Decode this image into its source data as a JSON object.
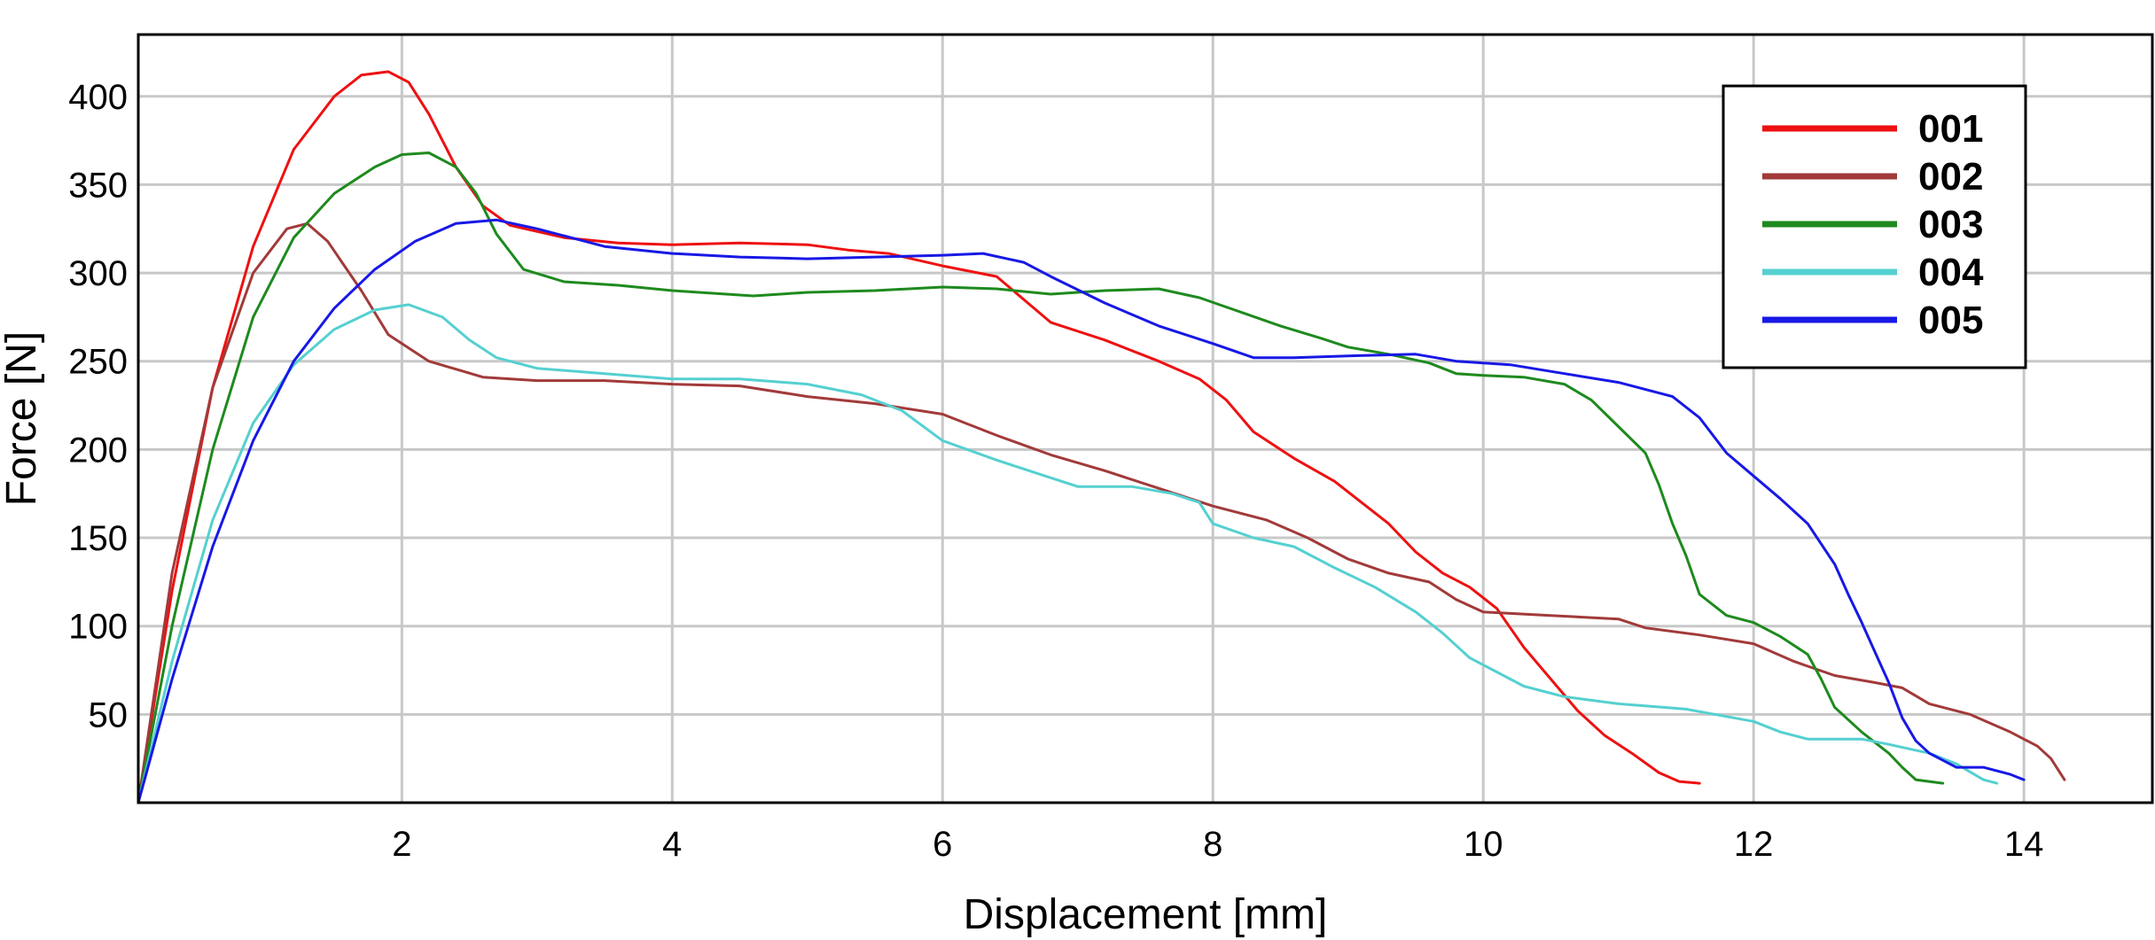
{
  "chart_data": {
    "type": "line",
    "title": "",
    "xlabel": "Displacement [mm]",
    "ylabel": "Force [N]",
    "xlim": [
      0.05,
      14.95
    ],
    "ylim": [
      0,
      435
    ],
    "xticks": [
      2,
      4,
      6,
      8,
      10,
      12,
      14
    ],
    "yticks": [
      50,
      100,
      150,
      200,
      250,
      300,
      350,
      400
    ],
    "grid": true,
    "legend_position": "top-right",
    "series": [
      {
        "name": "001",
        "color": "#ee1111",
        "points": [
          [
            0.05,
            0
          ],
          [
            0.3,
            120
          ],
          [
            0.6,
            235
          ],
          [
            0.9,
            315
          ],
          [
            1.2,
            370
          ],
          [
            1.5,
            400
          ],
          [
            1.7,
            412
          ],
          [
            1.9,
            414
          ],
          [
            2.05,
            408
          ],
          [
            2.2,
            390
          ],
          [
            2.4,
            360
          ],
          [
            2.6,
            338
          ],
          [
            2.8,
            327
          ],
          [
            3.2,
            320
          ],
          [
            3.6,
            317
          ],
          [
            4.0,
            316
          ],
          [
            4.5,
            317
          ],
          [
            5.0,
            316
          ],
          [
            5.3,
            313
          ],
          [
            5.6,
            311
          ],
          [
            6.0,
            304
          ],
          [
            6.4,
            298
          ],
          [
            6.6,
            285
          ],
          [
            6.8,
            272
          ],
          [
            7.2,
            262
          ],
          [
            7.6,
            250
          ],
          [
            7.9,
            240
          ],
          [
            8.1,
            228
          ],
          [
            8.3,
            210
          ],
          [
            8.6,
            195
          ],
          [
            8.9,
            182
          ],
          [
            9.1,
            170
          ],
          [
            9.3,
            158
          ],
          [
            9.5,
            142
          ],
          [
            9.7,
            130
          ],
          [
            9.9,
            122
          ],
          [
            10.1,
            110
          ],
          [
            10.3,
            88
          ],
          [
            10.5,
            70
          ],
          [
            10.7,
            52
          ],
          [
            10.9,
            38
          ],
          [
            11.1,
            28
          ],
          [
            11.3,
            17
          ],
          [
            11.45,
            12
          ],
          [
            11.6,
            11
          ]
        ]
      },
      {
        "name": "002",
        "color": "#a23a3a",
        "points": [
          [
            0.05,
            0
          ],
          [
            0.3,
            130
          ],
          [
            0.6,
            235
          ],
          [
            0.9,
            300
          ],
          [
            1.15,
            325
          ],
          [
            1.3,
            328
          ],
          [
            1.45,
            318
          ],
          [
            1.7,
            290
          ],
          [
            1.9,
            265
          ],
          [
            2.2,
            250
          ],
          [
            2.6,
            241
          ],
          [
            3.0,
            239
          ],
          [
            3.5,
            239
          ],
          [
            4.0,
            237
          ],
          [
            4.5,
            236
          ],
          [
            5.0,
            230
          ],
          [
            5.5,
            226
          ],
          [
            6.0,
            220
          ],
          [
            6.4,
            208
          ],
          [
            6.8,
            197
          ],
          [
            7.2,
            188
          ],
          [
            7.6,
            178
          ],
          [
            8.0,
            168
          ],
          [
            8.4,
            160
          ],
          [
            8.7,
            150
          ],
          [
            9.0,
            138
          ],
          [
            9.3,
            130
          ],
          [
            9.6,
            125
          ],
          [
            9.8,
            115
          ],
          [
            10.0,
            108
          ],
          [
            10.5,
            106
          ],
          [
            11.0,
            104
          ],
          [
            11.2,
            99
          ],
          [
            11.6,
            95
          ],
          [
            12.0,
            90
          ],
          [
            12.3,
            80
          ],
          [
            12.6,
            72
          ],
          [
            12.9,
            68
          ],
          [
            13.1,
            65
          ],
          [
            13.3,
            56
          ],
          [
            13.6,
            50
          ],
          [
            13.9,
            40
          ],
          [
            14.1,
            32
          ],
          [
            14.2,
            25
          ],
          [
            14.3,
            13
          ]
        ]
      },
      {
        "name": "003",
        "color": "#1e8a1e",
        "points": [
          [
            0.05,
            0
          ],
          [
            0.3,
            100
          ],
          [
            0.6,
            200
          ],
          [
            0.9,
            275
          ],
          [
            1.2,
            320
          ],
          [
            1.5,
            345
          ],
          [
            1.8,
            360
          ],
          [
            2.0,
            367
          ],
          [
            2.2,
            368
          ],
          [
            2.4,
            360
          ],
          [
            2.55,
            345
          ],
          [
            2.7,
            322
          ],
          [
            2.9,
            302
          ],
          [
            3.2,
            295
          ],
          [
            3.6,
            293
          ],
          [
            4.0,
            290
          ],
          [
            4.6,
            287
          ],
          [
            5.0,
            289
          ],
          [
            5.5,
            290
          ],
          [
            6.0,
            292
          ],
          [
            6.4,
            291
          ],
          [
            6.8,
            288
          ],
          [
            7.2,
            290
          ],
          [
            7.6,
            291
          ],
          [
            7.9,
            286
          ],
          [
            8.2,
            278
          ],
          [
            8.5,
            270
          ],
          [
            8.8,
            263
          ],
          [
            9.0,
            258
          ],
          [
            9.3,
            254
          ],
          [
            9.6,
            249
          ],
          [
            9.8,
            243
          ],
          [
            10.0,
            242
          ],
          [
            10.3,
            241
          ],
          [
            10.6,
            237
          ],
          [
            10.8,
            228
          ],
          [
            11.0,
            213
          ],
          [
            11.2,
            198
          ],
          [
            11.3,
            180
          ],
          [
            11.4,
            158
          ],
          [
            11.5,
            140
          ],
          [
            11.6,
            118
          ],
          [
            11.8,
            106
          ],
          [
            12.0,
            102
          ],
          [
            12.2,
            94
          ],
          [
            12.4,
            84
          ],
          [
            12.5,
            70
          ],
          [
            12.6,
            54
          ],
          [
            12.8,
            40
          ],
          [
            13.0,
            28
          ],
          [
            13.1,
            20
          ],
          [
            13.2,
            13
          ],
          [
            13.4,
            11
          ]
        ]
      },
      {
        "name": "004",
        "color": "#55d0d0",
        "points": [
          [
            0.05,
            0
          ],
          [
            0.3,
            80
          ],
          [
            0.6,
            160
          ],
          [
            0.9,
            215
          ],
          [
            1.2,
            248
          ],
          [
            1.5,
            268
          ],
          [
            1.8,
            279
          ],
          [
            2.05,
            282
          ],
          [
            2.3,
            275
          ],
          [
            2.5,
            262
          ],
          [
            2.7,
            252
          ],
          [
            3.0,
            246
          ],
          [
            3.5,
            243
          ],
          [
            4.0,
            240
          ],
          [
            4.5,
            240
          ],
          [
            5.0,
            237
          ],
          [
            5.4,
            231
          ],
          [
            5.7,
            222
          ],
          [
            6.0,
            205
          ],
          [
            6.4,
            194
          ],
          [
            6.8,
            184
          ],
          [
            7.0,
            179
          ],
          [
            7.4,
            179
          ],
          [
            7.7,
            175
          ],
          [
            7.9,
            170
          ],
          [
            8.0,
            158
          ],
          [
            8.3,
            150
          ],
          [
            8.6,
            145
          ],
          [
            8.9,
            133
          ],
          [
            9.2,
            122
          ],
          [
            9.5,
            108
          ],
          [
            9.7,
            96
          ],
          [
            9.9,
            82
          ],
          [
            10.1,
            74
          ],
          [
            10.3,
            66
          ],
          [
            10.6,
            60
          ],
          [
            11.0,
            56
          ],
          [
            11.5,
            53
          ],
          [
            12.0,
            46
          ],
          [
            12.2,
            40
          ],
          [
            12.4,
            36
          ],
          [
            12.8,
            36
          ],
          [
            13.0,
            33
          ],
          [
            13.3,
            28
          ],
          [
            13.5,
            22
          ],
          [
            13.7,
            13
          ],
          [
            13.8,
            11
          ]
        ]
      },
      {
        "name": "005",
        "color": "#1818e6",
        "points": [
          [
            0.05,
            0
          ],
          [
            0.3,
            70
          ],
          [
            0.6,
            145
          ],
          [
            0.9,
            205
          ],
          [
            1.2,
            250
          ],
          [
            1.5,
            280
          ],
          [
            1.8,
            302
          ],
          [
            2.1,
            318
          ],
          [
            2.4,
            328
          ],
          [
            2.7,
            330
          ],
          [
            3.0,
            325
          ],
          [
            3.5,
            315
          ],
          [
            4.0,
            311
          ],
          [
            4.5,
            309
          ],
          [
            5.0,
            308
          ],
          [
            5.5,
            309
          ],
          [
            6.0,
            310
          ],
          [
            6.3,
            311
          ],
          [
            6.6,
            306
          ],
          [
            6.8,
            298
          ],
          [
            7.2,
            283
          ],
          [
            7.6,
            270
          ],
          [
            8.0,
            260
          ],
          [
            8.3,
            252
          ],
          [
            8.6,
            252
          ],
          [
            9.0,
            253
          ],
          [
            9.5,
            254
          ],
          [
            9.8,
            250
          ],
          [
            10.2,
            248
          ],
          [
            10.6,
            243
          ],
          [
            11.0,
            238
          ],
          [
            11.4,
            230
          ],
          [
            11.6,
            218
          ],
          [
            11.8,
            198
          ],
          [
            12.0,
            185
          ],
          [
            12.2,
            172
          ],
          [
            12.4,
            158
          ],
          [
            12.6,
            135
          ],
          [
            12.7,
            118
          ],
          [
            12.8,
            102
          ],
          [
            12.9,
            85
          ],
          [
            13.0,
            68
          ],
          [
            13.1,
            48
          ],
          [
            13.2,
            35
          ],
          [
            13.3,
            28
          ],
          [
            13.5,
            20
          ],
          [
            13.7,
            20
          ],
          [
            13.9,
            16
          ],
          [
            14.0,
            13
          ]
        ]
      }
    ]
  }
}
